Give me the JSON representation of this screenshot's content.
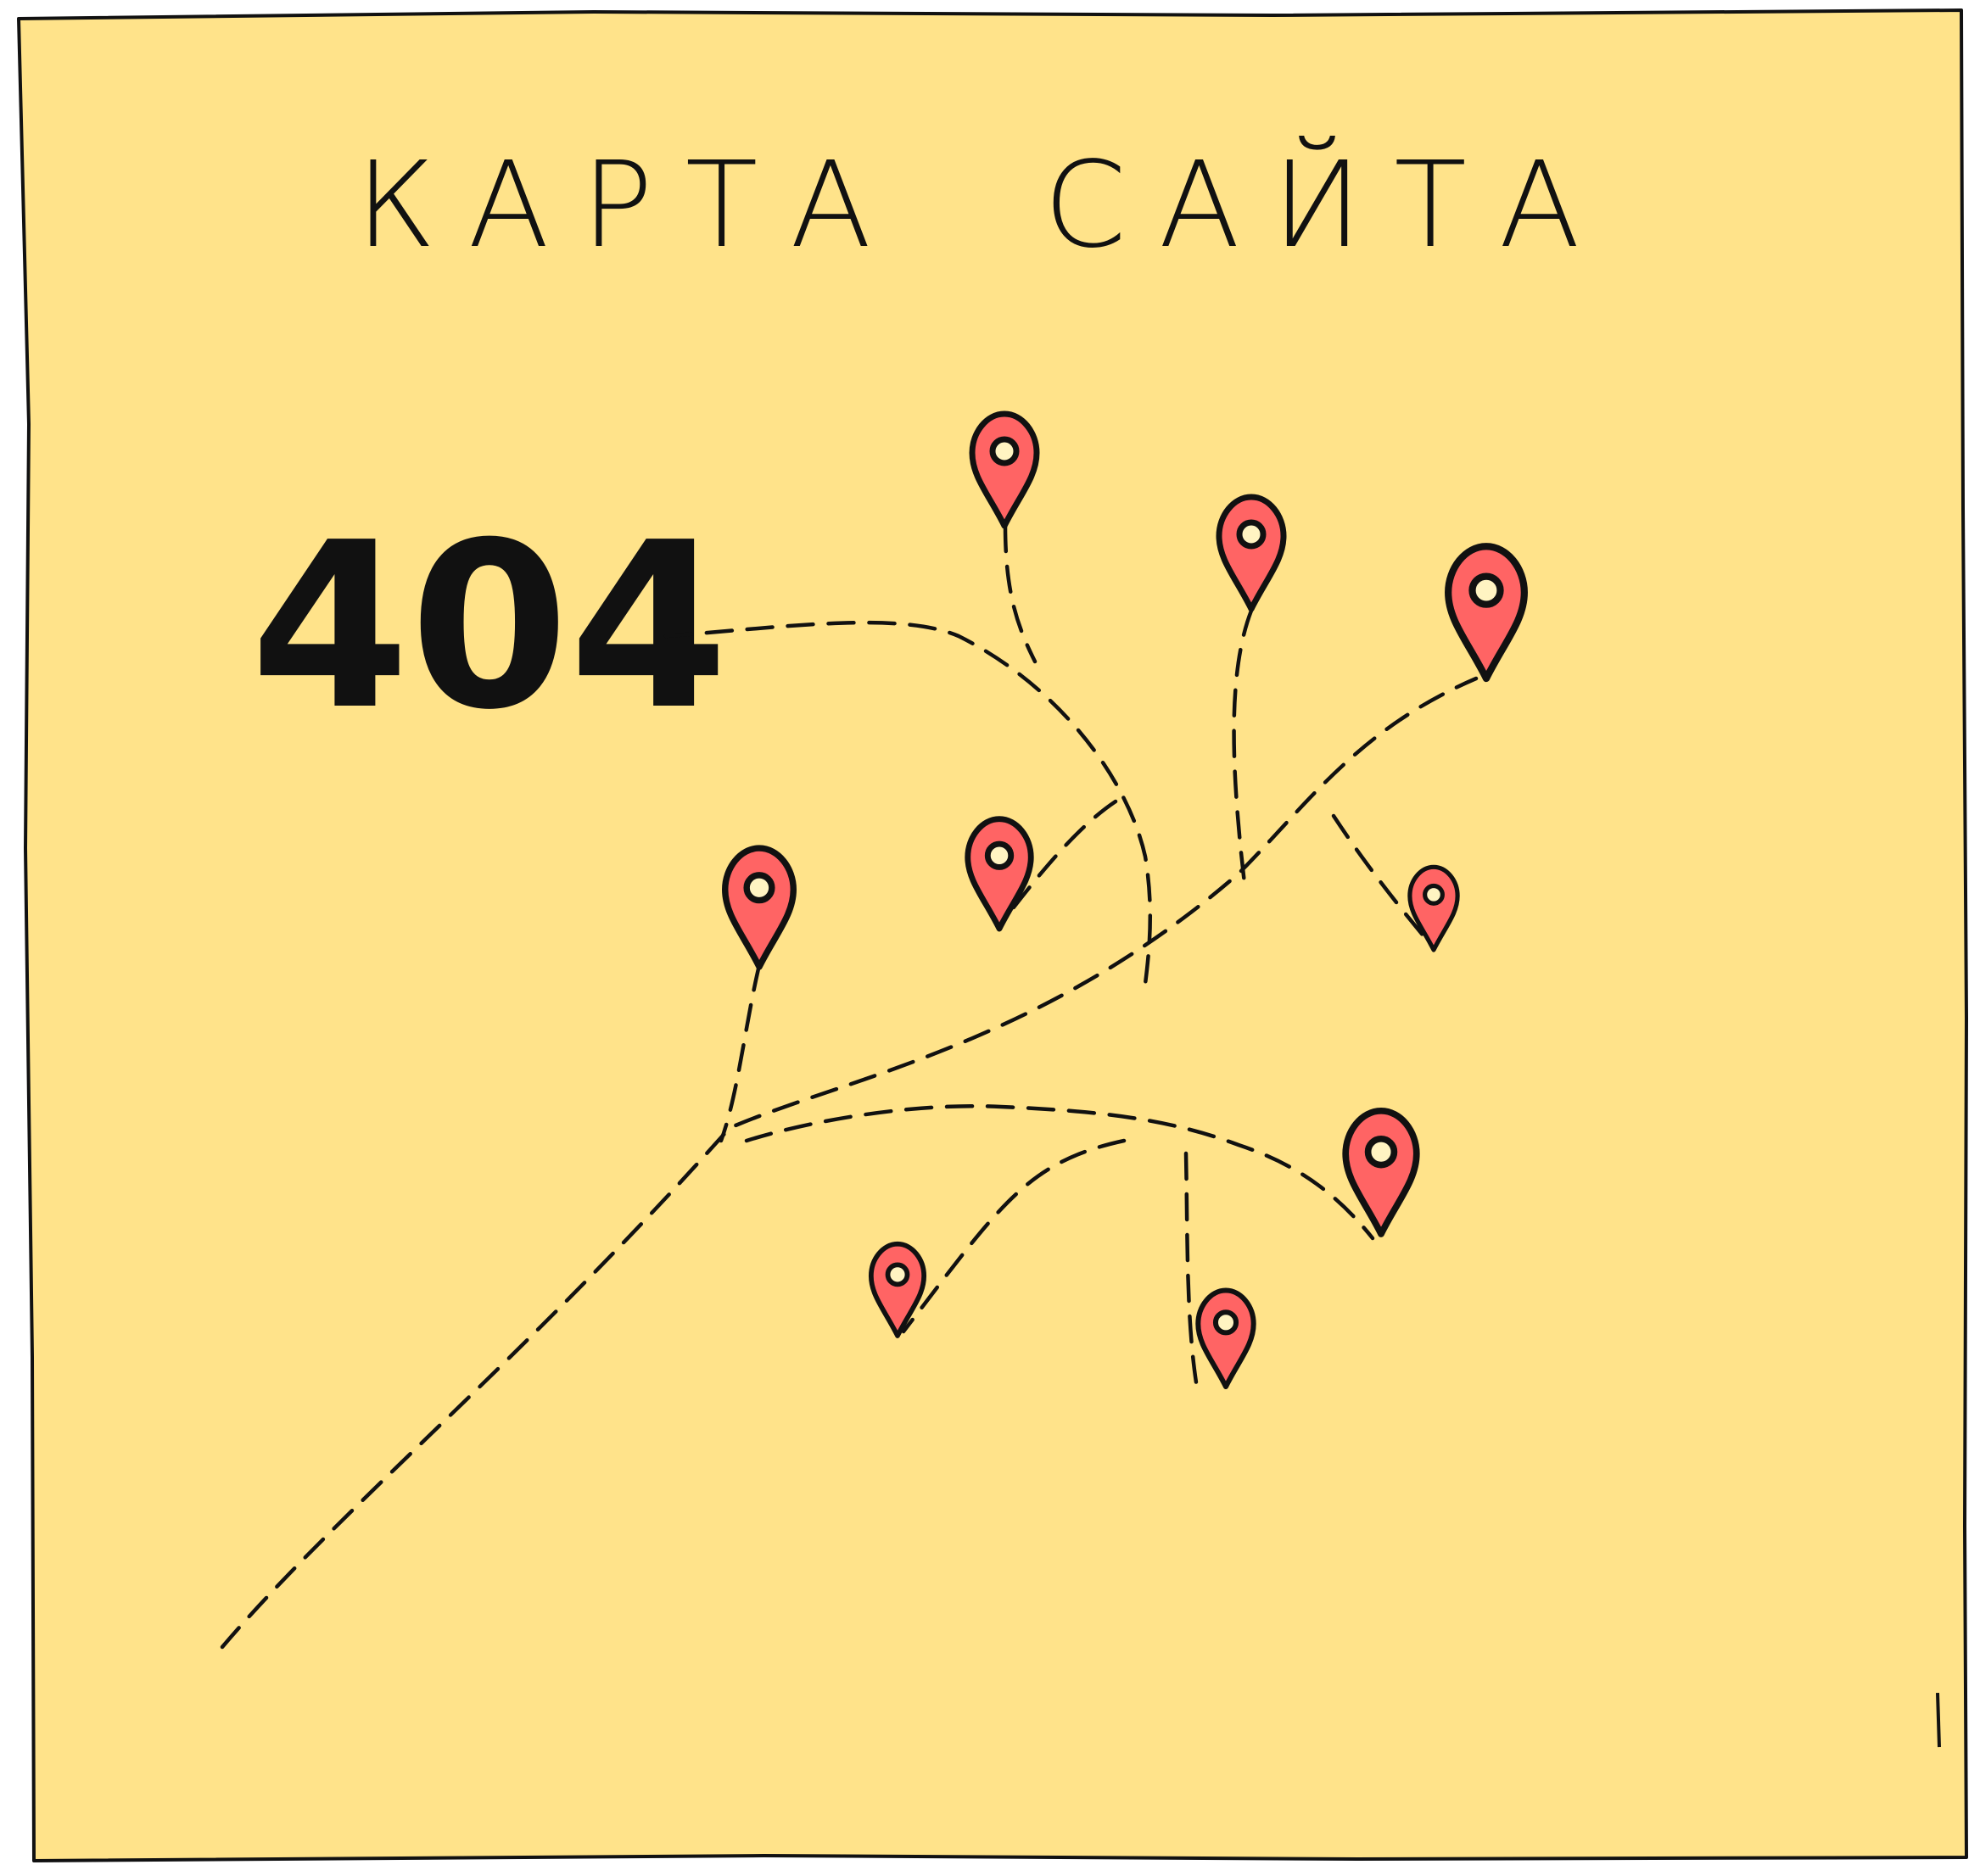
{
  "title": "КАРТА  САЙТА",
  "marker": "404",
  "colors": {
    "paper": "#FFE38A",
    "ink": "#111111",
    "pin": "#FF6464",
    "pin_hole": "#FFF4C2"
  },
  "icons": {
    "pin": "map-pin-icon"
  }
}
